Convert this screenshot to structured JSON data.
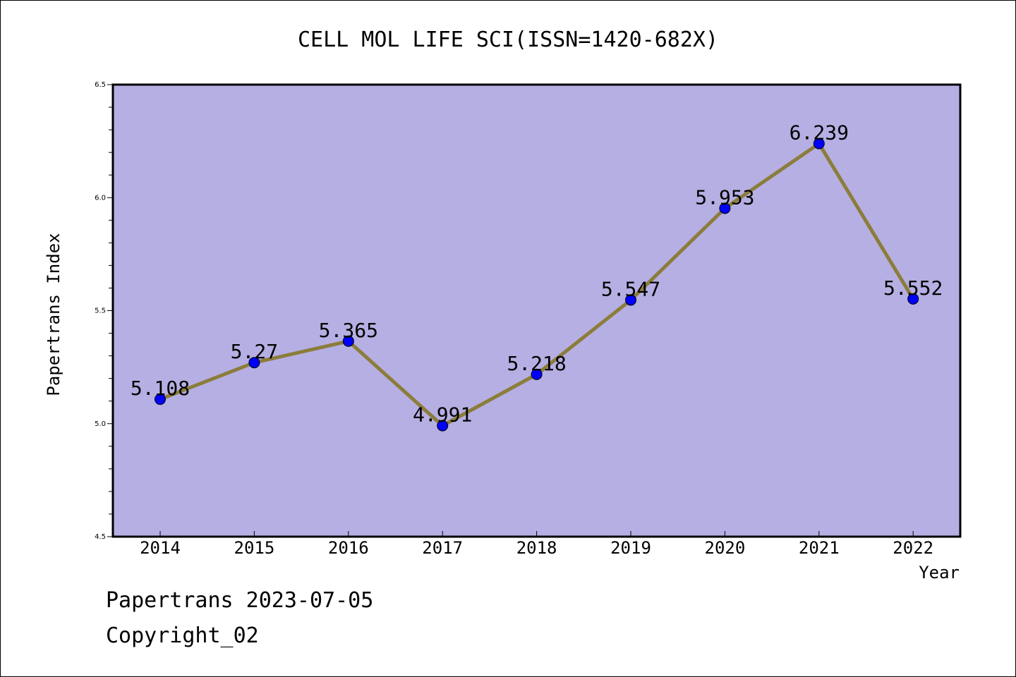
{
  "chart_data": {
    "type": "line",
    "title": "CELL MOL LIFE SCI(ISSN=1420-682X)",
    "xlabel": "Year",
    "ylabel": "Papertrans Index",
    "categories": [
      "2014",
      "2015",
      "2016",
      "2017",
      "2018",
      "2019",
      "2020",
      "2021",
      "2022"
    ],
    "series": [
      {
        "values": [
          5.108,
          5.27,
          5.365,
          4.991,
          5.218,
          5.547,
          5.953,
          6.239,
          5.552
        ],
        "labels": [
          "5.108",
          "5.27",
          "5.365",
          "4.991",
          "5.218",
          "5.547",
          "5.953",
          "6.239",
          "5.552"
        ]
      }
    ],
    "ylim": [
      4.5,
      6.5
    ],
    "yticks": [
      "4.5",
      "5.0",
      "5.5",
      "6.0",
      "6.5"
    ],
    "grid": false,
    "colors": {
      "plot_background": "#b5afe3",
      "line": "#8b7d3a",
      "marker": "#0000ff"
    }
  },
  "footer": {
    "line1": "Papertrans 2023-07-05",
    "line2": "Copyright_02"
  }
}
